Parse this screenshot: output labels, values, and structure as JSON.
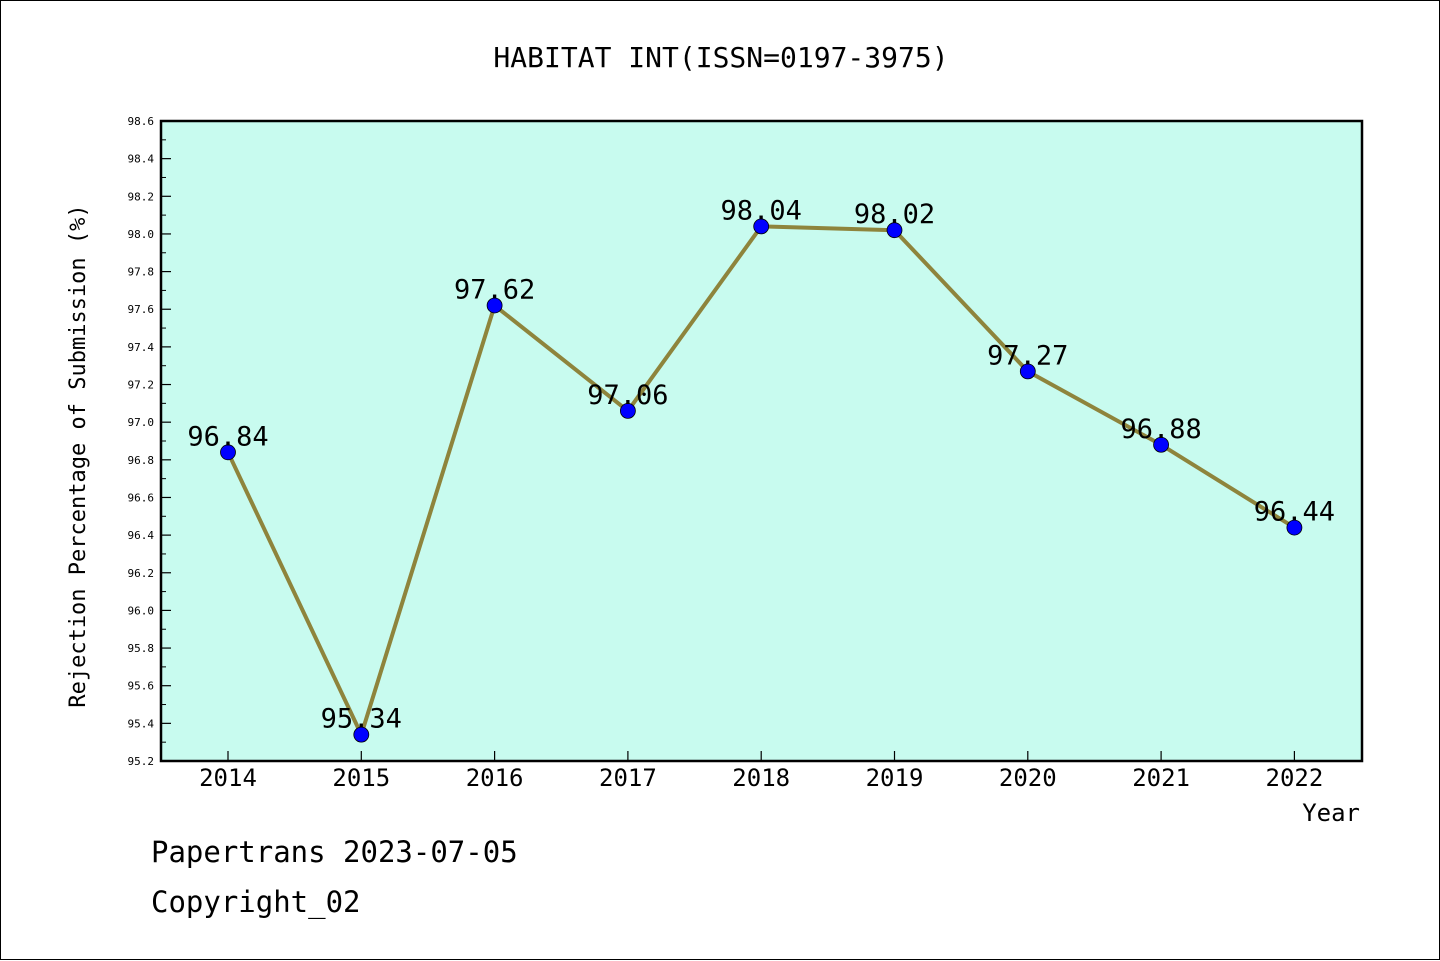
{
  "chart_data": {
    "type": "line",
    "title": "HABITAT INT(ISSN=0197-3975)",
    "xlabel": "Year",
    "ylabel": "Rejection Percentage of Submission (%)",
    "categories": [
      "2014",
      "2015",
      "2016",
      "2017",
      "2018",
      "2019",
      "2020",
      "2021",
      "2022"
    ],
    "series": [
      {
        "values": [
          96.84,
          95.34,
          97.62,
          97.06,
          98.04,
          98.02,
          97.27,
          96.88,
          96.44
        ],
        "labels": [
          "96.84",
          "95.34",
          "97.62",
          "97.06",
          "98.04",
          "98.02",
          "97.27",
          "96.88",
          "96.44"
        ]
      }
    ],
    "ylim": [
      95.2,
      98.6
    ],
    "y_major_ticks": [
      "95.2",
      "95.4",
      "95.6",
      "95.8",
      "96.0",
      "96.2",
      "96.4",
      "96.6",
      "96.8",
      "97.0",
      "97.2",
      "97.4",
      "97.6",
      "97.8",
      "98.0",
      "98.2",
      "98.4",
      "98.6"
    ],
    "grid": false,
    "legend": "none",
    "colors": {
      "plot_background": "#c8fbef",
      "line": "#8e843c",
      "marker": "#0000ff"
    }
  },
  "footer": {
    "line1": "Papertrans 2023-07-05",
    "line2": "Copyright_02"
  }
}
